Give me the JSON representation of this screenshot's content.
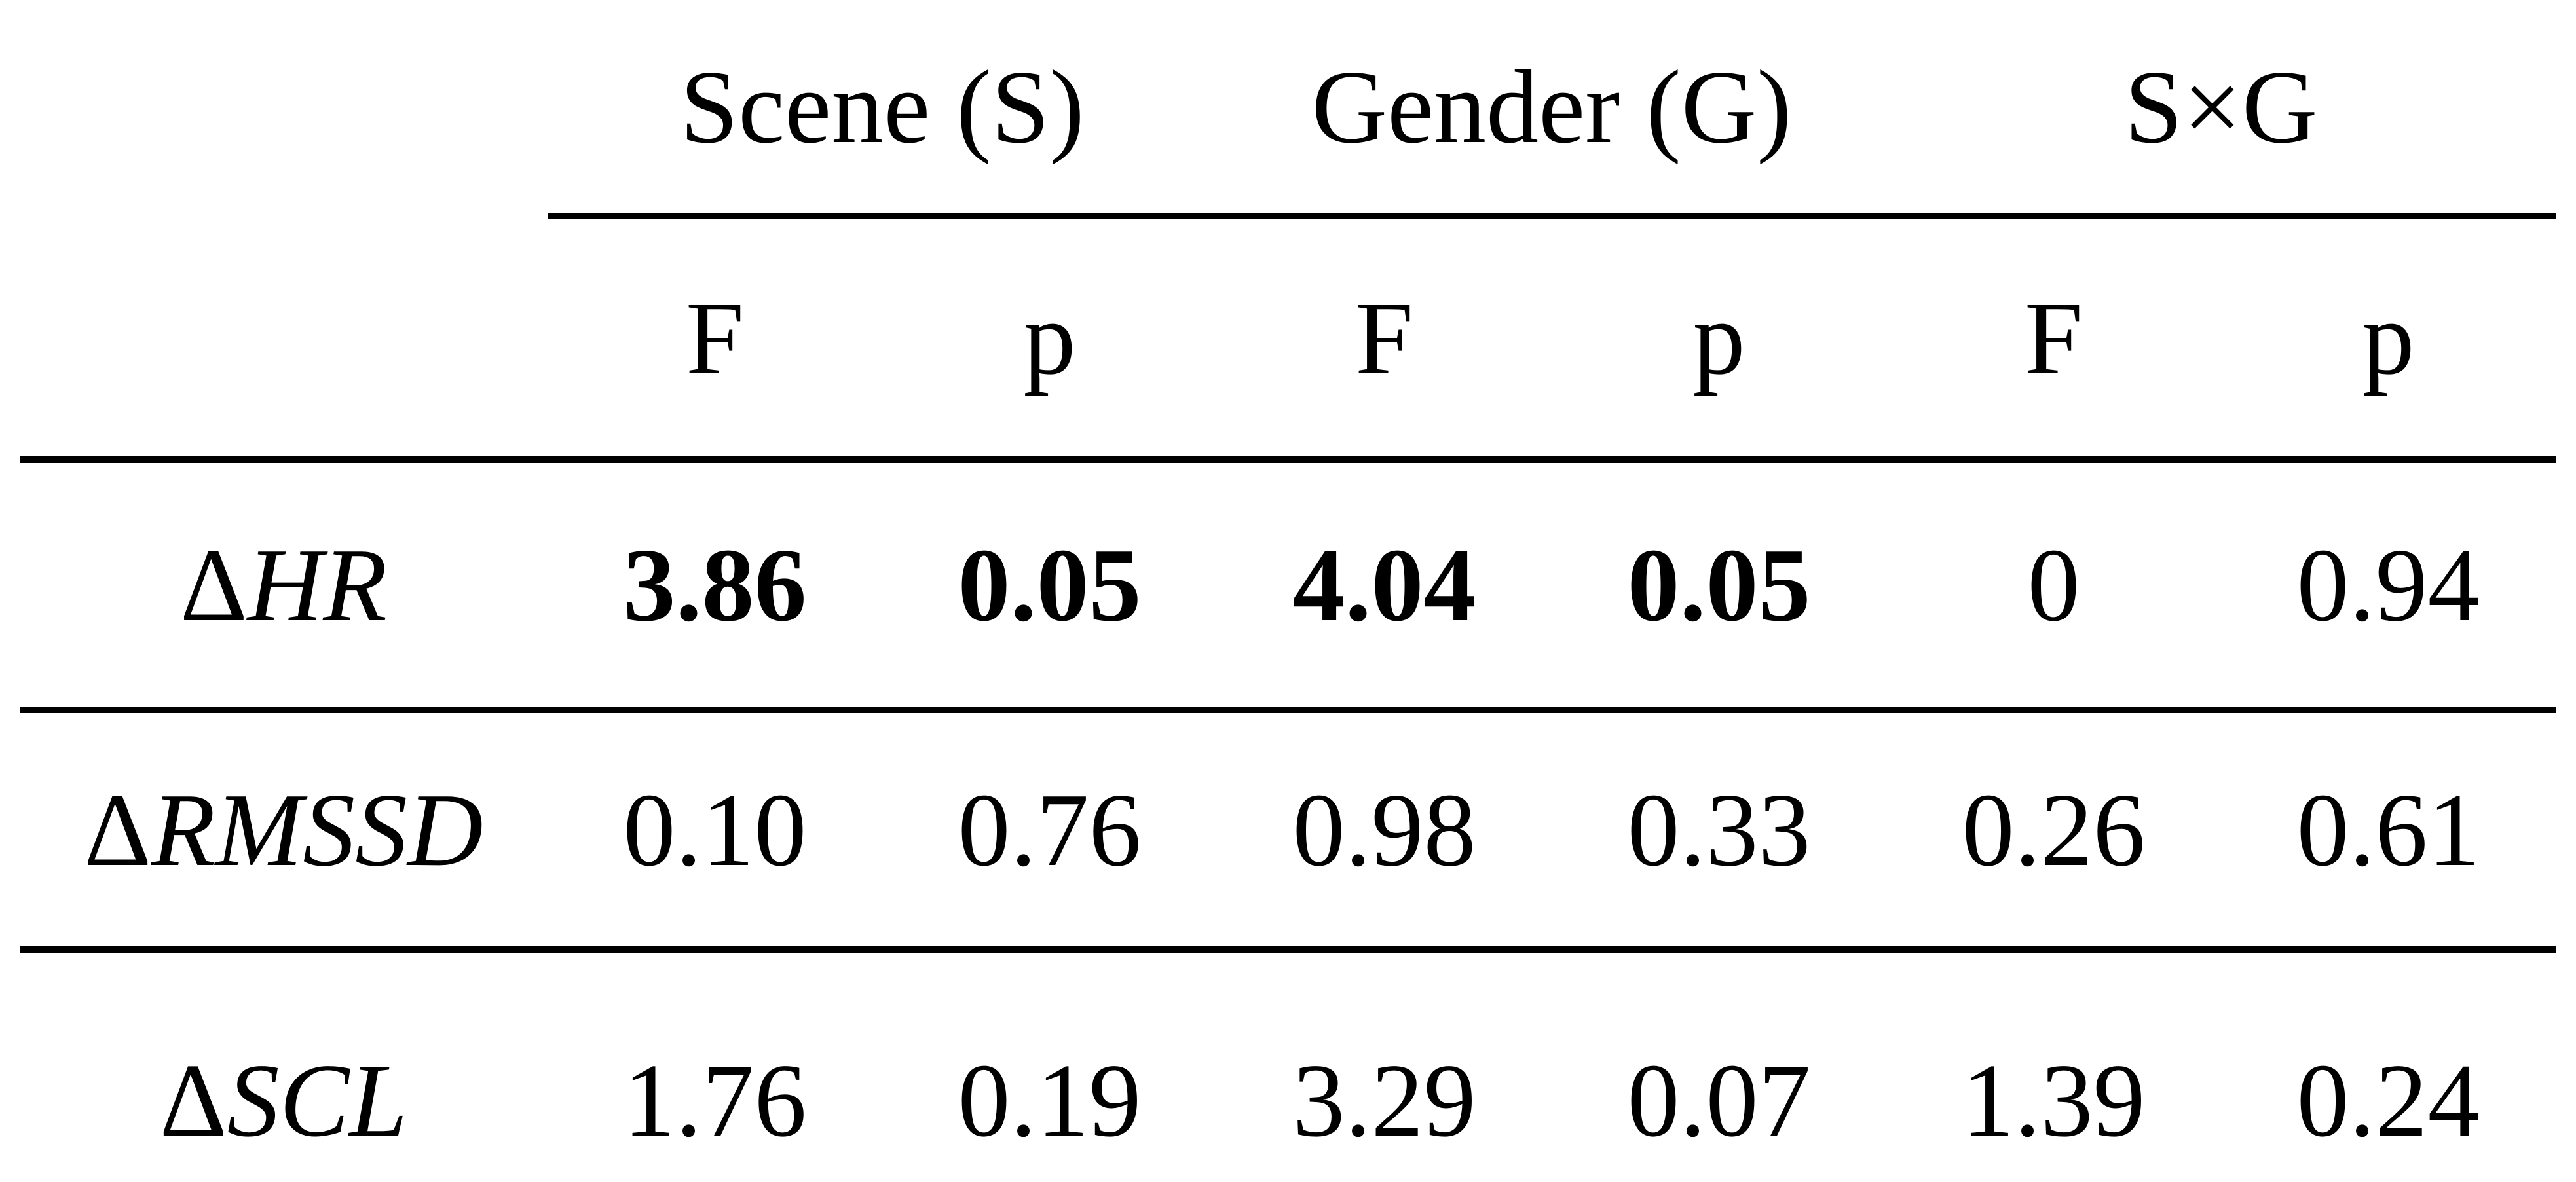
{
  "table": {
    "col_groups": [
      {
        "label": "Scene (S)"
      },
      {
        "label": "Gender (G)"
      },
      {
        "label": "S×G"
      }
    ],
    "sub_headers": [
      "F",
      "p",
      "F",
      "p",
      "F",
      "p"
    ],
    "rows": [
      {
        "label_delta": "Δ",
        "label_text": "HR",
        "values": [
          "3.86",
          "0.05",
          "4.04",
          "0.05",
          "0",
          "0.94"
        ],
        "bold": [
          true,
          true,
          true,
          true,
          false,
          false
        ]
      },
      {
        "label_delta": "Δ",
        "label_text": "RMSSD",
        "values": [
          "0.10",
          "0.76",
          "0.98",
          "0.33",
          "0.26",
          "0.61"
        ],
        "bold": [
          false,
          false,
          false,
          false,
          false,
          false
        ]
      },
      {
        "label_delta": "Δ",
        "label_text": "SCL",
        "values": [
          "1.76",
          "0.19",
          "3.29",
          "0.07",
          "1.39",
          "0.24"
        ],
        "bold": [
          false,
          false,
          false,
          false,
          false,
          false
        ]
      }
    ],
    "colors": {
      "text": "#000000",
      "background": "#ffffff",
      "rule": "#000000"
    }
  }
}
